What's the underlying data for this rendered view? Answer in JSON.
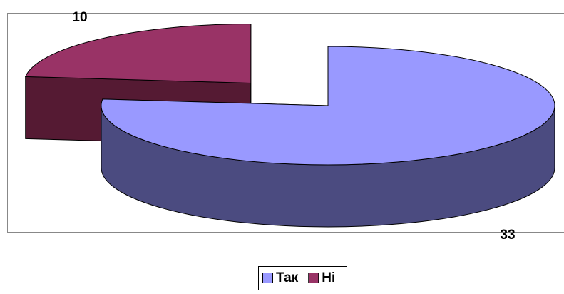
{
  "chart_data": {
    "type": "pie",
    "three_d": true,
    "categories": [
      "Так",
      "Ні"
    ],
    "values": [
      33,
      10
    ],
    "colors": [
      "#9999ff",
      "#993366"
    ],
    "side_colors": [
      "#4b4b80",
      "#551a33"
    ],
    "legend": "bottom"
  }
}
